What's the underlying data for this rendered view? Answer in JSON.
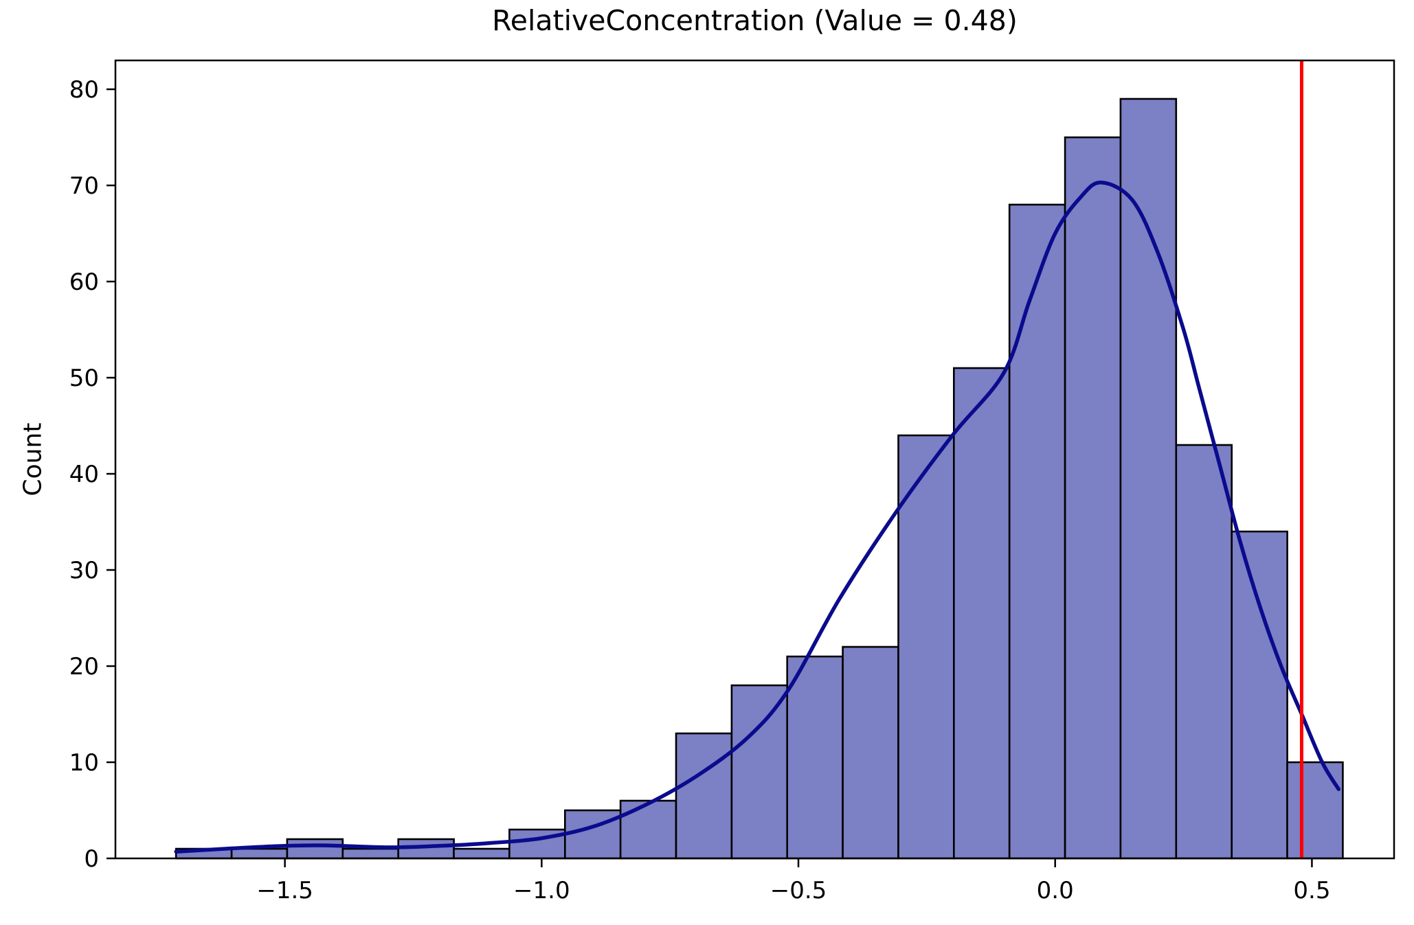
{
  "title": "RelativeConcentration (Value = 0.48)",
  "chart_data": {
    "type": "histogram",
    "title": "RelativeConcentration (Value = 0.48)",
    "xlabel": "",
    "ylabel": "Count",
    "xlim": [
      -1.83,
      0.66
    ],
    "ylim": [
      0,
      83
    ],
    "grid": false,
    "legend": null,
    "x_ticks": [
      -1.5,
      -1.0,
      -0.5,
      0.0,
      0.5
    ],
    "x_tick_labels": [
      "−1.5",
      "−1.0",
      "−0.5",
      "0.0",
      "0.5"
    ],
    "y_ticks": [
      0,
      10,
      20,
      30,
      40,
      50,
      60,
      70,
      80
    ],
    "y_tick_labels": [
      "0",
      "10",
      "20",
      "30",
      "40",
      "50",
      "60",
      "70",
      "80"
    ],
    "bins": {
      "start": -1.712,
      "width": 0.1082,
      "counts": [
        1,
        1,
        2,
        1,
        2,
        1,
        3,
        5,
        6,
        13,
        18,
        21,
        22,
        44,
        51,
        68,
        75,
        79,
        43,
        34,
        10
      ]
    },
    "kde_points": [
      [
        -1.712,
        0.7
      ],
      [
        -1.6,
        1.05
      ],
      [
        -1.5,
        1.3
      ],
      [
        -1.42,
        1.35
      ],
      [
        -1.3,
        1.15
      ],
      [
        -1.2,
        1.3
      ],
      [
        -1.1,
        1.6
      ],
      [
        -1.0,
        2.1
      ],
      [
        -0.9,
        3.3
      ],
      [
        -0.8,
        5.5
      ],
      [
        -0.7,
        8.5
      ],
      [
        -0.6,
        12.5
      ],
      [
        -0.52,
        17.5
      ],
      [
        -0.42,
        27.0
      ],
      [
        -0.31,
        36.0
      ],
      [
        -0.2,
        44.0
      ],
      [
        -0.1,
        50.5
      ],
      [
        -0.05,
        58.0
      ],
      [
        0.0,
        65.0
      ],
      [
        0.05,
        68.8
      ],
      [
        0.09,
        70.3
      ],
      [
        0.15,
        68.5
      ],
      [
        0.2,
        63.0
      ],
      [
        0.25,
        55.0
      ],
      [
        0.28,
        49.0
      ],
      [
        0.32,
        41.0
      ],
      [
        0.36,
        33.0
      ],
      [
        0.4,
        26.0
      ],
      [
        0.44,
        20.0
      ],
      [
        0.48,
        15.0
      ],
      [
        0.52,
        10.0
      ],
      [
        0.552,
        7.2
      ]
    ],
    "vline": {
      "x": 0.48,
      "value_label": "0.48"
    },
    "colors": {
      "bar_fill": "#7c80c5",
      "bar_edge": "#000000",
      "kde_line": "#0b0b8d",
      "vline": "#ff0000",
      "spine": "#000000",
      "tick_label": "#000000",
      "background": "#ffffff"
    }
  }
}
